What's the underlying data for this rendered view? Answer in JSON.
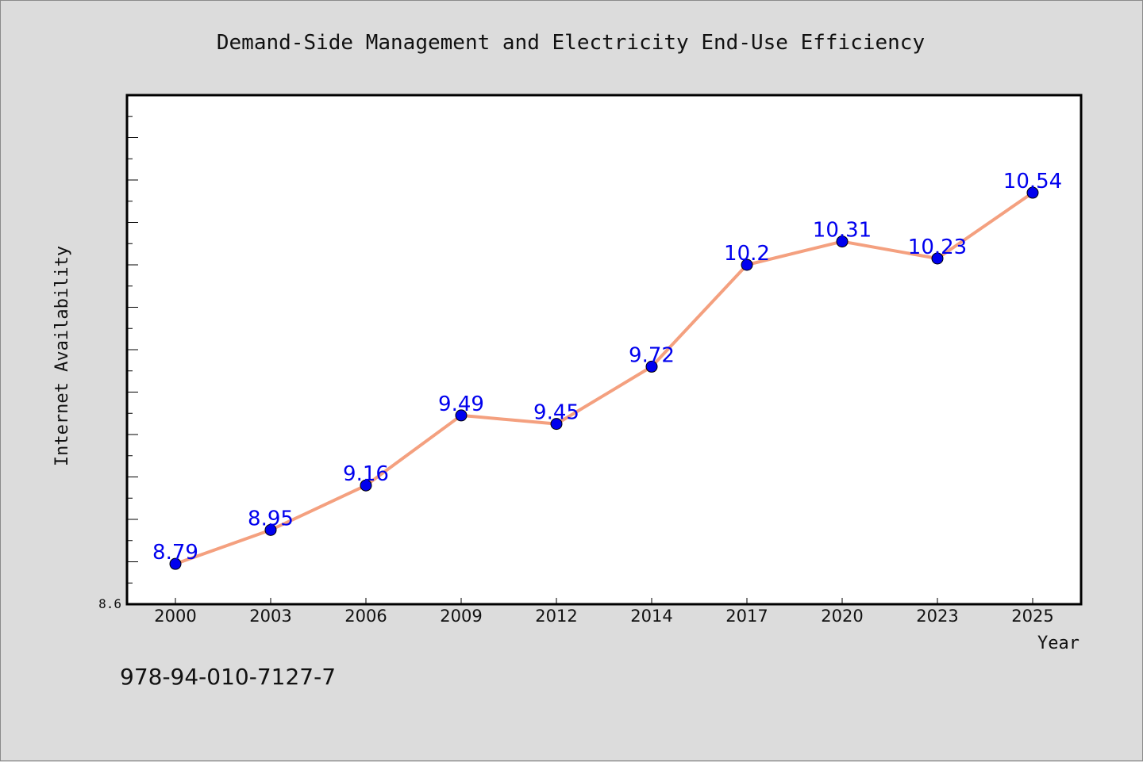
{
  "chart_data": {
    "type": "line",
    "title": "Demand-Side Management and Electricity End-Use Efficiency",
    "xlabel": "Year",
    "ylabel": "Internet Availability",
    "categories": [
      "2000",
      "2003",
      "2006",
      "2009",
      "2012",
      "2014",
      "2017",
      "2020",
      "2023",
      "2025"
    ],
    "series": [
      {
        "values": [
          8.79,
          8.95,
          9.16,
          9.49,
          9.45,
          9.72,
          10.2,
          10.31,
          10.23,
          10.54
        ],
        "labels": [
          "8.79",
          "8.95",
          "9.16",
          "9.49",
          "9.45",
          "9.72",
          "10.2",
          "10.31",
          "10.23",
          "10.54"
        ]
      }
    ],
    "ylim": [
      8.6,
      11.0
    ],
    "y_tick_label": "8.6",
    "y_minor_step": 0.1,
    "y_major_step": 0.2,
    "grid": false,
    "line_color": "#f4a07f",
    "marker_color": "#0000ee",
    "label_color": "#0000ee"
  },
  "footer": {
    "code": "978-94-010-7127-7"
  }
}
